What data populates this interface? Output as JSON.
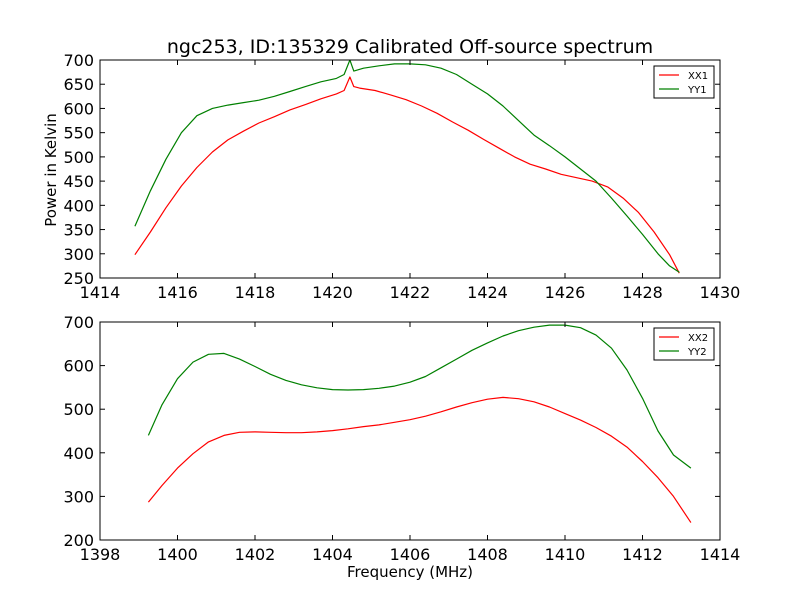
{
  "chart_data": [
    {
      "type": "line",
      "title": "ngc253, ID:135329 Calibrated Off-source spectrum",
      "xlabel": "",
      "ylabel": "Power in Kelvin",
      "xlim": [
        1414,
        1430
      ],
      "ylim": [
        250,
        700
      ],
      "xticks": [
        1414,
        1416,
        1418,
        1420,
        1422,
        1424,
        1426,
        1428,
        1430
      ],
      "yticks": [
        250,
        300,
        350,
        400,
        450,
        500,
        550,
        600,
        650,
        700
      ],
      "legend_position": "top-right",
      "series": [
        {
          "name": "XX1",
          "color": "#ff0000",
          "x": [
            1414.9,
            1415.3,
            1415.7,
            1416.1,
            1416.5,
            1416.9,
            1417.3,
            1417.7,
            1418.1,
            1418.5,
            1418.9,
            1419.3,
            1419.7,
            1420.1,
            1420.3,
            1420.45,
            1420.55,
            1420.7,
            1421.1,
            1421.5,
            1421.9,
            1422.3,
            1422.7,
            1423.1,
            1423.5,
            1423.9,
            1424.3,
            1424.7,
            1425.1,
            1425.5,
            1425.9,
            1426.3,
            1426.7,
            1427.1,
            1427.5,
            1427.9,
            1428.3,
            1428.7,
            1428.95
          ],
          "y": [
            298,
            345,
            395,
            440,
            478,
            510,
            535,
            553,
            570,
            583,
            597,
            608,
            620,
            630,
            637,
            665,
            645,
            642,
            637,
            628,
            618,
            605,
            590,
            572,
            555,
            536,
            518,
            500,
            485,
            475,
            464,
            457,
            450,
            438,
            415,
            385,
            345,
            298,
            260
          ]
        },
        {
          "name": "YY1",
          "color": "#008000",
          "x": [
            1414.9,
            1415.3,
            1415.7,
            1416.1,
            1416.5,
            1416.9,
            1417.3,
            1417.7,
            1418.1,
            1418.5,
            1418.9,
            1419.3,
            1419.7,
            1420.1,
            1420.3,
            1420.45,
            1420.55,
            1420.8,
            1421.2,
            1421.6,
            1422.0,
            1422.4,
            1422.8,
            1423.2,
            1423.6,
            1424.0,
            1424.4,
            1424.8,
            1425.2,
            1425.6,
            1426.0,
            1426.4,
            1426.8,
            1427.2,
            1427.6,
            1428.0,
            1428.4,
            1428.7,
            1428.95
          ],
          "y": [
            357,
            430,
            495,
            550,
            585,
            600,
            607,
            612,
            617,
            625,
            635,
            645,
            655,
            662,
            670,
            700,
            677,
            683,
            688,
            692,
            692,
            690,
            683,
            670,
            650,
            630,
            605,
            575,
            545,
            523,
            500,
            475,
            450,
            415,
            378,
            340,
            300,
            275,
            262
          ]
        }
      ]
    },
    {
      "type": "line",
      "title": "",
      "xlabel": "Frequency (MHz)",
      "ylabel": "",
      "xlim": [
        1398,
        1414
      ],
      "ylim": [
        200,
        700
      ],
      "xticks": [
        1398,
        1400,
        1402,
        1404,
        1406,
        1408,
        1410,
        1412,
        1414
      ],
      "yticks": [
        200,
        300,
        400,
        500,
        600,
        700
      ],
      "legend_position": "top-right",
      "series": [
        {
          "name": "XX2",
          "color": "#ff0000",
          "x": [
            1399.25,
            1399.6,
            1400.0,
            1400.4,
            1400.8,
            1401.2,
            1401.6,
            1402.0,
            1402.4,
            1402.8,
            1403.2,
            1403.6,
            1404.0,
            1404.4,
            1404.8,
            1405.2,
            1405.6,
            1406.0,
            1406.4,
            1406.8,
            1407.2,
            1407.6,
            1408.0,
            1408.4,
            1408.8,
            1409.2,
            1409.6,
            1410.0,
            1410.4,
            1410.8,
            1411.2,
            1411.6,
            1412.0,
            1412.4,
            1412.8,
            1413.25
          ],
          "y": [
            287,
            325,
            365,
            398,
            425,
            440,
            447,
            448,
            447,
            446,
            446,
            448,
            451,
            455,
            460,
            464,
            470,
            476,
            484,
            494,
            505,
            515,
            523,
            527,
            524,
            517,
            505,
            490,
            475,
            458,
            438,
            413,
            380,
            343,
            300,
            240
          ]
        },
        {
          "name": "YY2",
          "color": "#008000",
          "x": [
            1399.25,
            1399.6,
            1400.0,
            1400.4,
            1400.8,
            1401.2,
            1401.6,
            1402.0,
            1402.4,
            1402.8,
            1403.2,
            1403.6,
            1404.0,
            1404.4,
            1404.8,
            1405.2,
            1405.6,
            1406.0,
            1406.4,
            1406.8,
            1407.2,
            1407.6,
            1408.0,
            1408.4,
            1408.8,
            1409.2,
            1409.6,
            1410.0,
            1410.4,
            1410.8,
            1411.2,
            1411.6,
            1412.0,
            1412.4,
            1412.8,
            1413.25
          ],
          "y": [
            440,
            510,
            570,
            608,
            626,
            628,
            615,
            598,
            580,
            566,
            556,
            549,
            545,
            544,
            545,
            548,
            553,
            562,
            575,
            595,
            615,
            635,
            652,
            668,
            680,
            688,
            693,
            693,
            687,
            670,
            640,
            590,
            525,
            450,
            395,
            365
          ]
        }
      ]
    }
  ]
}
